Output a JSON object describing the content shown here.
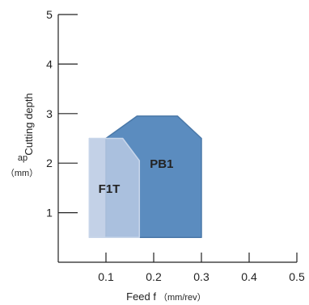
{
  "chart_data": {
    "type": "area",
    "title": "",
    "xlabel": "Feed f",
    "xunit": "（mm/rev）",
    "ylabel": "Cutting depth",
    "yunit_symbol": "ap",
    "yunit": "（mm）",
    "xlim": [
      0,
      0.5
    ],
    "ylim": [
      0,
      5
    ],
    "xticks": [
      {
        "value": 0.1,
        "label": "0.1"
      },
      {
        "value": 0.2,
        "label": "0.2"
      },
      {
        "value": 0.3,
        "label": "0.3"
      },
      {
        "value": 0.4,
        "label": "0.4"
      },
      {
        "value": 0.5,
        "label": "0.5"
      }
    ],
    "yticks": [
      {
        "value": 1,
        "label": "1"
      },
      {
        "value": 2,
        "label": "2"
      },
      {
        "value": 3,
        "label": "3"
      },
      {
        "value": 4,
        "label": "4"
      },
      {
        "value": 5,
        "label": "5"
      }
    ],
    "grid": false,
    "legend": "none",
    "regions": [
      {
        "name": "PB1",
        "color": "#5b8cbf",
        "stroke": "#4a78a8",
        "label_at": [
          0.21,
          2.0
        ],
        "points": [
          [
            0.1,
            0.5
          ],
          [
            0.1,
            2.5
          ],
          [
            0.165,
            2.95
          ],
          [
            0.25,
            2.95
          ],
          [
            0.3,
            2.5
          ],
          [
            0.3,
            0.5
          ]
        ]
      },
      {
        "name": "F1T",
        "color": "#b8c9e3",
        "stroke": "#c8d6ea",
        "label_at": [
          0.1,
          1.5
        ],
        "points": [
          [
            0.065,
            0.5
          ],
          [
            0.065,
            2.5
          ],
          [
            0.135,
            2.5
          ],
          [
            0.17,
            2.05
          ],
          [
            0.17,
            0.5
          ]
        ]
      }
    ]
  }
}
